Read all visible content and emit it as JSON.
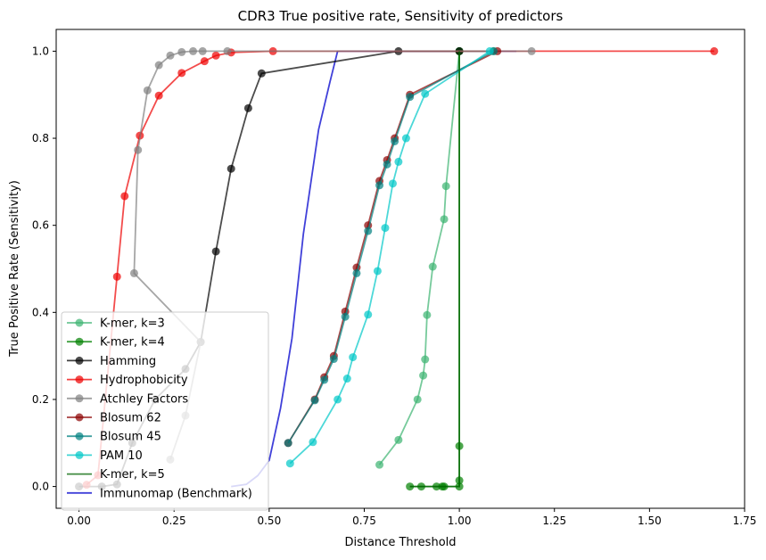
{
  "chart_data": {
    "type": "line",
    "title": "CDR3 True positive rate, Sensitivity of predictors",
    "xlabel": "Distance Threshold",
    "ylabel": "True Positive Rate (Sensitivity)",
    "xlim": [
      -0.06,
      1.75
    ],
    "ylim": [
      -0.05,
      1.05
    ],
    "xticks": [
      0.0,
      0.25,
      0.5,
      0.75,
      1.0,
      1.25,
      1.5,
      1.75
    ],
    "xtick_labels": [
      "0.00",
      "0.25",
      "0.50",
      "0.75",
      "1.00",
      "1.25",
      "1.50",
      "1.75"
    ],
    "yticks": [
      0.0,
      0.2,
      0.4,
      0.6,
      0.8,
      1.0
    ],
    "ytick_labels": [
      "0.0",
      "0.2",
      "0.4",
      "0.6",
      "0.8",
      "1.0"
    ],
    "grid": false,
    "legend_position": "lower-left",
    "series": [
      {
        "name": "Immunomap (Benchmark)",
        "color": "#0000cc",
        "marker": false,
        "x": [
          0.4,
          0.44,
          0.47,
          0.5,
          0.53,
          0.56,
          0.59,
          0.63,
          0.66,
          0.68,
          0.72,
          0.78,
          0.88,
          1.0,
          1.1,
          1.15
        ],
        "y": [
          0.0,
          0.005,
          0.025,
          0.06,
          0.18,
          0.34,
          0.58,
          0.82,
          0.93,
          1.0,
          1.0,
          1.0,
          1.0,
          1.0,
          1.0,
          1.0
        ]
      },
      {
        "name": "K-mer, k=3",
        "color": "#3cb371",
        "marker": true,
        "x": [
          0.79,
          0.84,
          0.89,
          0.905,
          0.91,
          0.915,
          0.93,
          0.96,
          0.965,
          1.0,
          1.09
        ],
        "y": [
          0.05,
          0.107,
          0.2,
          0.255,
          0.292,
          0.394,
          0.505,
          0.614,
          0.69,
          1.0,
          1.0
        ]
      },
      {
        "name": "K-mer, k=4",
        "color": "#008000",
        "marker": true,
        "x": [
          0.87,
          0.9,
          0.94,
          0.955,
          0.96,
          1.0,
          1.0,
          1.0,
          1.0
        ],
        "y": [
          0.0,
          0.0,
          0.0,
          0.0,
          0.0,
          0.0,
          0.014,
          0.093,
          1.0
        ]
      },
      {
        "name": "Hamming",
        "color": "#000000",
        "marker": true,
        "x": [
          0.0,
          0.06,
          0.1,
          0.14,
          0.2,
          0.28,
          0.32,
          0.36,
          0.4,
          0.445,
          0.48,
          0.84,
          1.0
        ],
        "y": [
          0.0,
          0.0,
          0.005,
          0.1,
          0.2,
          0.27,
          0.332,
          0.54,
          0.73,
          0.869,
          0.949,
          1.0,
          1.0
        ]
      },
      {
        "name": "Hydrophobicity",
        "color": "#ee0000",
        "marker": true,
        "x": [
          0.02,
          0.05,
          0.1,
          0.12,
          0.16,
          0.21,
          0.27,
          0.33,
          0.36,
          0.4,
          0.51,
          1.67
        ],
        "y": [
          0.004,
          0.026,
          0.482,
          0.667,
          0.806,
          0.898,
          0.95,
          0.977,
          0.99,
          0.997,
          1.0,
          1.0
        ]
      },
      {
        "name": "Atchley Factors",
        "color": "#808080",
        "marker": true,
        "x": [
          0.24,
          0.28,
          0.32,
          0.145,
          0.155,
          0.18,
          0.21,
          0.24,
          0.27,
          0.3,
          0.325,
          0.39,
          1.19
        ],
        "y": [
          0.062,
          0.163,
          0.332,
          0.49,
          0.773,
          0.91,
          0.968,
          0.99,
          0.998,
          1.0,
          1.0,
          1.0,
          1.0
        ]
      },
      {
        "name": "Blosum 62",
        "color": "#8b0000",
        "marker": true,
        "x": [
          0.55,
          0.62,
          0.645,
          0.67,
          0.7,
          0.73,
          0.76,
          0.79,
          0.81,
          0.83,
          0.87,
          1.1
        ],
        "y": [
          0.1,
          0.2,
          0.251,
          0.3,
          0.402,
          0.503,
          0.6,
          0.702,
          0.75,
          0.8,
          0.9,
          1.0
        ]
      },
      {
        "name": "Blosum 45",
        "color": "#008080",
        "marker": true,
        "x": [
          0.55,
          0.62,
          0.645,
          0.67,
          0.7,
          0.73,
          0.76,
          0.79,
          0.81,
          0.83,
          0.87,
          1.09
        ],
        "y": [
          0.1,
          0.198,
          0.245,
          0.293,
          0.39,
          0.49,
          0.587,
          0.692,
          0.74,
          0.793,
          0.895,
          1.0
        ]
      },
      {
        "name": "PAM 10",
        "color": "#00c8c8",
        "marker": true,
        "x": [
          0.555,
          0.615,
          0.68,
          0.705,
          0.72,
          0.76,
          0.785,
          0.805,
          0.825,
          0.84,
          0.86,
          0.91,
          1.08
        ],
        "y": [
          0.053,
          0.102,
          0.2,
          0.248,
          0.297,
          0.395,
          0.495,
          0.594,
          0.696,
          0.746,
          0.8,
          0.902,
          1.0
        ]
      },
      {
        "name": "K-mer, k=5",
        "color": "#006400",
        "marker": false,
        "x": [
          0.87,
          1.0,
          1.0
        ],
        "y": [
          0.0,
          0.0,
          1.0
        ]
      }
    ],
    "legend_order": [
      "K-mer, k=3",
      "K-mer, k=4",
      "Hamming",
      "Hydrophobicity",
      "Atchley Factors",
      "Blosum 62",
      "Blosum 45",
      "PAM 10",
      "K-mer, k=5",
      "Immunomap (Benchmark)"
    ]
  }
}
